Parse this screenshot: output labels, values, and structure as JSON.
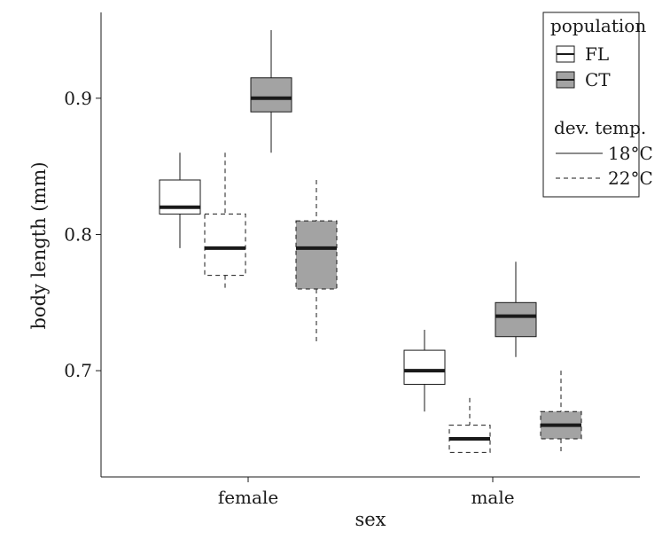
{
  "chart_data": {
    "type": "box",
    "xlabel": "sex",
    "ylabel": "body length (mm)",
    "ylim": [
      0.622,
      0.963
    ],
    "yticks": [
      "0.7",
      "0.8",
      "0.9"
    ],
    "categories": [
      "female",
      "male"
    ],
    "groups": [
      {
        "population": "FL",
        "dev_temp": "18°C"
      },
      {
        "population": "FL",
        "dev_temp": "22°C"
      },
      {
        "population": "CT",
        "dev_temp": "18°C"
      },
      {
        "population": "CT",
        "dev_temp": "22°C"
      }
    ],
    "boxes": [
      {
        "category": "female",
        "group": 0,
        "min": 0.79,
        "q1": 0.815,
        "median": 0.82,
        "q3": 0.84,
        "max": 0.86
      },
      {
        "category": "female",
        "group": 1,
        "min": 0.76,
        "q1": 0.77,
        "median": 0.79,
        "q3": 0.815,
        "max": 0.86
      },
      {
        "category": "female",
        "group": 2,
        "min": 0.86,
        "q1": 0.89,
        "median": 0.9,
        "q3": 0.915,
        "max": 0.95
      },
      {
        "category": "female",
        "group": 3,
        "min": 0.72,
        "q1": 0.76,
        "median": 0.79,
        "q3": 0.81,
        "max": 0.84
      },
      {
        "category": "male",
        "group": 0,
        "min": 0.67,
        "q1": 0.69,
        "median": 0.7,
        "q3": 0.715,
        "max": 0.73
      },
      {
        "category": "male",
        "group": 1,
        "min": 0.64,
        "q1": 0.64,
        "median": 0.65,
        "q3": 0.66,
        "max": 0.68
      },
      {
        "category": "male",
        "group": 2,
        "min": 0.71,
        "q1": 0.725,
        "median": 0.74,
        "q3": 0.75,
        "max": 0.78
      },
      {
        "category": "male",
        "group": 3,
        "min": 0.64,
        "q1": 0.65,
        "median": 0.66,
        "q3": 0.67,
        "max": 0.7
      }
    ],
    "colors": {
      "FL": "#ffffff",
      "CT": "#a3a3a3",
      "median": "#1a1a1a",
      "stroke": "#1a1a1a"
    },
    "legend": {
      "position": "top-right",
      "fill_title": "population",
      "fill_items": [
        {
          "label": "FL",
          "color": "#ffffff"
        },
        {
          "label": "CT",
          "color": "#a3a3a3"
        }
      ],
      "linetype_title": "dev. temp.",
      "linetype_items": [
        {
          "label": "18°C",
          "dash": "solid"
        },
        {
          "label": "22°C",
          "dash": "dashed"
        }
      ]
    }
  }
}
